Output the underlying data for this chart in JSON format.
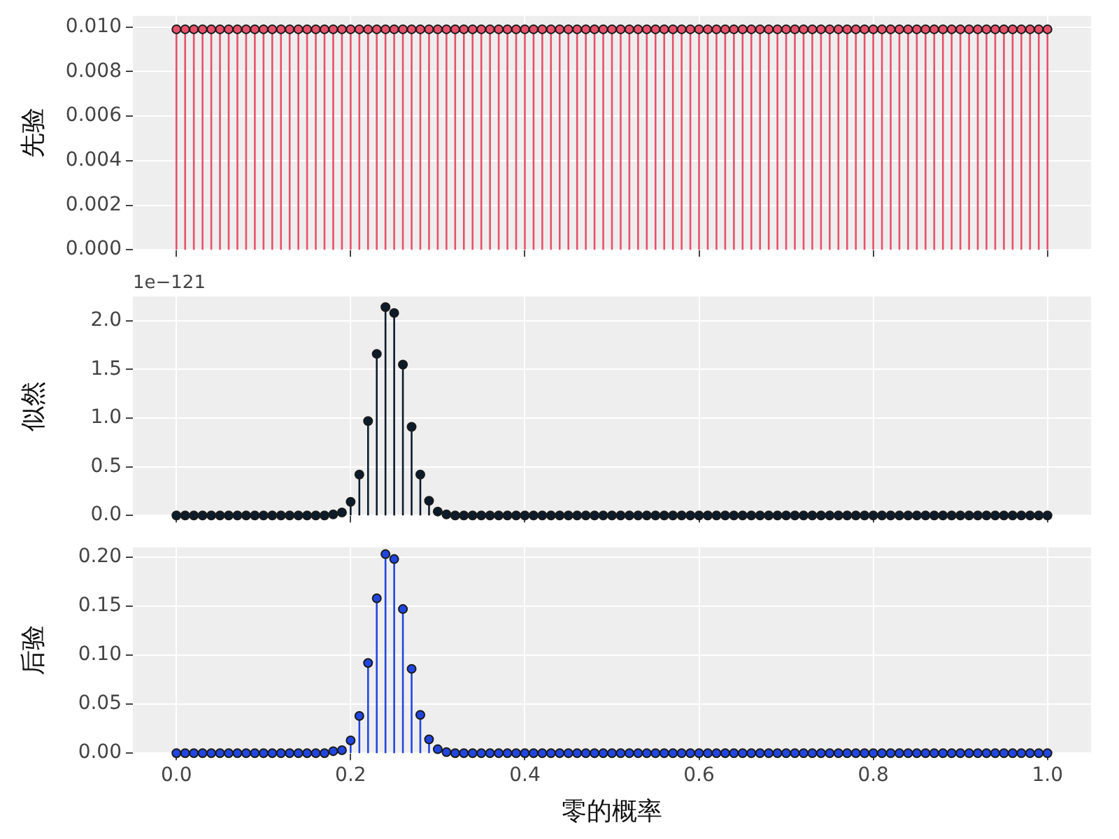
{
  "chart_data": [
    {
      "type": "lollipop",
      "ylabel": "先验",
      "color": "#e8506a",
      "marker": "circle",
      "grid": true,
      "tick_labels": "y",
      "x": [
        0,
        0.01,
        0.02,
        0.03,
        0.04,
        0.05,
        0.06,
        0.07,
        0.08,
        0.09,
        0.1,
        0.11,
        0.12,
        0.13,
        0.14,
        0.15,
        0.16,
        0.17,
        0.18,
        0.19,
        0.2,
        0.21,
        0.22,
        0.23,
        0.24,
        0.25,
        0.26,
        0.27,
        0.28,
        0.29,
        0.3,
        0.31,
        0.32,
        0.33,
        0.34,
        0.35,
        0.36,
        0.37,
        0.38,
        0.39,
        0.4,
        0.41,
        0.42,
        0.43,
        0.44,
        0.45,
        0.46,
        0.47,
        0.48,
        0.49,
        0.5,
        0.51,
        0.52,
        0.53,
        0.54,
        0.55,
        0.56,
        0.57,
        0.58,
        0.59,
        0.6,
        0.61,
        0.62,
        0.63,
        0.64,
        0.65,
        0.66,
        0.67,
        0.68,
        0.69,
        0.7,
        0.71,
        0.72,
        0.73,
        0.74,
        0.75,
        0.76,
        0.77,
        0.78,
        0.79,
        0.8,
        0.81,
        0.82,
        0.83,
        0.84,
        0.85,
        0.86,
        0.87,
        0.88,
        0.89,
        0.9,
        0.91,
        0.92,
        0.93,
        0.94,
        0.95,
        0.96,
        0.97,
        0.98,
        0.99,
        1
      ],
      "values": [
        0.0099,
        0.0099,
        0.0099,
        0.0099,
        0.0099,
        0.0099,
        0.0099,
        0.0099,
        0.0099,
        0.0099,
        0.0099,
        0.0099,
        0.0099,
        0.0099,
        0.0099,
        0.0099,
        0.0099,
        0.0099,
        0.0099,
        0.0099,
        0.0099,
        0.0099,
        0.0099,
        0.0099,
        0.0099,
        0.0099,
        0.0099,
        0.0099,
        0.0099,
        0.0099,
        0.0099,
        0.0099,
        0.0099,
        0.0099,
        0.0099,
        0.0099,
        0.0099,
        0.0099,
        0.0099,
        0.0099,
        0.0099,
        0.0099,
        0.0099,
        0.0099,
        0.0099,
        0.0099,
        0.0099,
        0.0099,
        0.0099,
        0.0099,
        0.0099,
        0.0099,
        0.0099,
        0.0099,
        0.0099,
        0.0099,
        0.0099,
        0.0099,
        0.0099,
        0.0099,
        0.0099,
        0.0099,
        0.0099,
        0.0099,
        0.0099,
        0.0099,
        0.0099,
        0.0099,
        0.0099,
        0.0099,
        0.0099,
        0.0099,
        0.0099,
        0.0099,
        0.0099,
        0.0099,
        0.0099,
        0.0099,
        0.0099,
        0.0099,
        0.0099,
        0.0099,
        0.0099,
        0.0099,
        0.0099,
        0.0099,
        0.0099,
        0.0099,
        0.0099,
        0.0099,
        0.0099,
        0.0099,
        0.0099,
        0.0099,
        0.0099,
        0.0099,
        0.0099,
        0.0099,
        0.0099,
        0.0099,
        0.0099
      ],
      "xlim": [
        -0.05,
        1.05
      ],
      "xticks": [
        0,
        0.2,
        0.4,
        0.6,
        0.8,
        1
      ],
      "ylim": [
        0,
        0.0105
      ],
      "yticks": [
        {
          "value": 0,
          "label": "0.000"
        },
        0.002,
        0.004,
        0.006,
        0.008,
        {
          "value": 0.01,
          "label": "0.010"
        }
      ]
    },
    {
      "type": "lollipop",
      "ylabel": "似然",
      "color": "#0c1c2c",
      "marker": "circle",
      "grid": true,
      "tick_labels": "y",
      "annotations": [
        "1e−121"
      ],
      "x": [
        0,
        0.01,
        0.02,
        0.03,
        0.04,
        0.05,
        0.06,
        0.07,
        0.08,
        0.09,
        0.1,
        0.11,
        0.12,
        0.13,
        0.14,
        0.15,
        0.16,
        0.17,
        0.18,
        0.19,
        0.2,
        0.21,
        0.22,
        0.23,
        0.24,
        0.25,
        0.26,
        0.27,
        0.28,
        0.29,
        0.3,
        0.31,
        0.32,
        0.33,
        0.34,
        0.35,
        0.36,
        0.37,
        0.38,
        0.39,
        0.4,
        0.41,
        0.42,
        0.43,
        0.44,
        0.45,
        0.46,
        0.47,
        0.48,
        0.49,
        0.5,
        0.51,
        0.52,
        0.53,
        0.54,
        0.55,
        0.56,
        0.57,
        0.58,
        0.59,
        0.6,
        0.61,
        0.62,
        0.63,
        0.64,
        0.65,
        0.66,
        0.67,
        0.68,
        0.69,
        0.7,
        0.71,
        0.72,
        0.73,
        0.74,
        0.75,
        0.76,
        0.77,
        0.78,
        0.79,
        0.8,
        0.81,
        0.82,
        0.83,
        0.84,
        0.85,
        0.86,
        0.87,
        0.88,
        0.89,
        0.9,
        0.91,
        0.92,
        0.93,
        0.94,
        0.95,
        0.96,
        0.97,
        0.98,
        0.99,
        1
      ],
      "values": [
        0,
        0,
        0,
        0,
        0,
        0,
        0,
        0,
        0,
        0,
        0,
        0,
        0,
        0,
        0,
        0,
        0,
        0,
        0.01,
        0.03,
        0.14,
        0.42,
        0.97,
        1.66,
        2.14,
        2.08,
        1.55,
        0.91,
        0.42,
        0.15,
        0.04,
        0.01,
        0,
        0,
        0,
        0,
        0,
        0,
        0,
        0,
        0,
        0,
        0,
        0,
        0,
        0,
        0,
        0,
        0,
        0,
        0,
        0,
        0,
        0,
        0,
        0,
        0,
        0,
        0,
        0,
        0,
        0,
        0,
        0,
        0,
        0,
        0,
        0,
        0,
        0,
        0,
        0,
        0,
        0,
        0,
        0,
        0,
        0,
        0,
        0,
        0,
        0,
        0,
        0,
        0,
        0,
        0,
        0,
        0,
        0,
        0,
        0,
        0,
        0,
        0,
        0,
        0,
        0,
        0,
        0,
        0
      ],
      "xlim": [
        -0.05,
        1.05
      ],
      "xticks": [
        0,
        0.2,
        0.4,
        0.6,
        0.8,
        1
      ],
      "ylim": [
        0,
        2.25
      ],
      "yticks": [
        {
          "value": 0,
          "label": "0.0"
        },
        0.5,
        {
          "value": 1,
          "label": "1.0"
        },
        1.5,
        {
          "value": 2,
          "label": "2.0"
        }
      ]
    },
    {
      "type": "lollipop",
      "ylabel": "后验",
      "xlabel": "零的概率",
      "color": "#2146e0",
      "marker": "circle",
      "grid": true,
      "x": [
        0,
        0.01,
        0.02,
        0.03,
        0.04,
        0.05,
        0.06,
        0.07,
        0.08,
        0.09,
        0.1,
        0.11,
        0.12,
        0.13,
        0.14,
        0.15,
        0.16,
        0.17,
        0.18,
        0.19,
        0.2,
        0.21,
        0.22,
        0.23,
        0.24,
        0.25,
        0.26,
        0.27,
        0.28,
        0.29,
        0.3,
        0.31,
        0.32,
        0.33,
        0.34,
        0.35,
        0.36,
        0.37,
        0.38,
        0.39,
        0.4,
        0.41,
        0.42,
        0.43,
        0.44,
        0.45,
        0.46,
        0.47,
        0.48,
        0.49,
        0.5,
        0.51,
        0.52,
        0.53,
        0.54,
        0.55,
        0.56,
        0.57,
        0.58,
        0.59,
        0.6,
        0.61,
        0.62,
        0.63,
        0.64,
        0.65,
        0.66,
        0.67,
        0.68,
        0.69,
        0.7,
        0.71,
        0.72,
        0.73,
        0.74,
        0.75,
        0.76,
        0.77,
        0.78,
        0.79,
        0.8,
        0.81,
        0.82,
        0.83,
        0.84,
        0.85,
        0.86,
        0.87,
        0.88,
        0.89,
        0.9,
        0.91,
        0.92,
        0.93,
        0.94,
        0.95,
        0.96,
        0.97,
        0.98,
        0.99,
        1
      ],
      "values": [
        0,
        0,
        0,
        0,
        0,
        0,
        0,
        0,
        0,
        0,
        0,
        0,
        0,
        0,
        0,
        0,
        0,
        0,
        0.002,
        0.003,
        0.013,
        0.038,
        0.092,
        0.158,
        0.203,
        0.198,
        0.147,
        0.086,
        0.039,
        0.014,
        0.004,
        0.001,
        0,
        0,
        0,
        0,
        0,
        0,
        0,
        0,
        0,
        0,
        0,
        0,
        0,
        0,
        0,
        0,
        0,
        0,
        0,
        0,
        0,
        0,
        0,
        0,
        0,
        0,
        0,
        0,
        0,
        0,
        0,
        0,
        0,
        0,
        0,
        0,
        0,
        0,
        0,
        0,
        0,
        0,
        0,
        0,
        0,
        0,
        0,
        0,
        0,
        0,
        0,
        0,
        0,
        0,
        0,
        0,
        0,
        0,
        0,
        0,
        0,
        0,
        0,
        0,
        0,
        0,
        0,
        0,
        0
      ],
      "xlim": [
        -0.05,
        1.05
      ],
      "xticks": [
        {
          "value": 0,
          "label": "0.0"
        },
        0.2,
        0.4,
        0.6,
        0.8,
        {
          "value": 1,
          "label": "1.0"
        }
      ],
      "ylim": [
        0,
        0.21
      ],
      "yticks": [
        {
          "value": 0,
          "label": "0.00"
        },
        0.05,
        {
          "value": 0.1,
          "label": "0.10"
        },
        0.15,
        {
          "value": 0.2,
          "label": "0.20"
        }
      ]
    }
  ]
}
